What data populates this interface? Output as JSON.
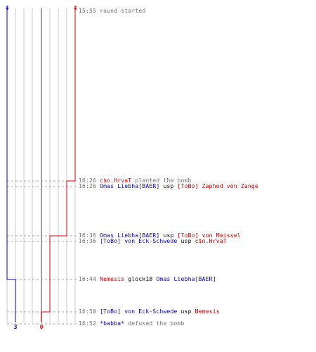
{
  "colors": {
    "terrorist": "#c00000",
    "counter_terrorist": "#0000a8",
    "timestamp": "#6f6f6f",
    "grid": "#c8c8c8",
    "zero_line": "#808080"
  },
  "counters": {
    "ct_start": "4",
    "t_start": "4",
    "ct_end": "3",
    "t_end": "0"
  },
  "events": [
    {
      "time": "15:55",
      "parts": [
        {
          "text": "round started",
          "team": "neutral"
        }
      ]
    },
    {
      "time": "16:26",
      "parts": [
        {
          "text": "c$n.HrvaT",
          "team": "t"
        },
        {
          "text": "planted the bomb",
          "team": "neutral"
        }
      ]
    },
    {
      "time": "16:26",
      "parts": [
        {
          "text": "Omas Liebha[BAER]",
          "team": "ct"
        },
        {
          "text": "usp",
          "team": "weapon"
        },
        {
          "text": "[ToBo] Zaphod von Zange",
          "team": "t"
        }
      ]
    },
    {
      "time": "16:36",
      "parts": [
        {
          "text": "Omas Liebha[BAER]",
          "team": "ct"
        },
        {
          "text": "usp",
          "team": "weapon"
        },
        {
          "text": "[ToBo] von Meissel",
          "team": "t"
        }
      ]
    },
    {
      "time": "16:36",
      "parts": [
        {
          "text": "[ToBo] von Eck-Schwede",
          "team": "ct"
        },
        {
          "text": "usp",
          "team": "weapon"
        },
        {
          "text": "c$n.HrvaT",
          "team": "t"
        }
      ]
    },
    {
      "time": "16:44",
      "parts": [
        {
          "text": "Nemesis",
          "team": "t"
        },
        {
          "text": "glock18",
          "team": "weapon"
        },
        {
          "text": "Omas Liebha[BAER]",
          "team": "ct"
        }
      ]
    },
    {
      "time": "16:50",
      "parts": [
        {
          "text": "[ToBo] von Eck-Schwede",
          "team": "ct"
        },
        {
          "text": "usp",
          "team": "weapon"
        },
        {
          "text": "Nemesis",
          "team": "t"
        }
      ]
    },
    {
      "time": "16:52",
      "parts": [
        {
          "text": "*babba*",
          "team": "ct"
        },
        {
          "text": "defused the bomb",
          "team": "neutral"
        }
      ]
    }
  ]
}
